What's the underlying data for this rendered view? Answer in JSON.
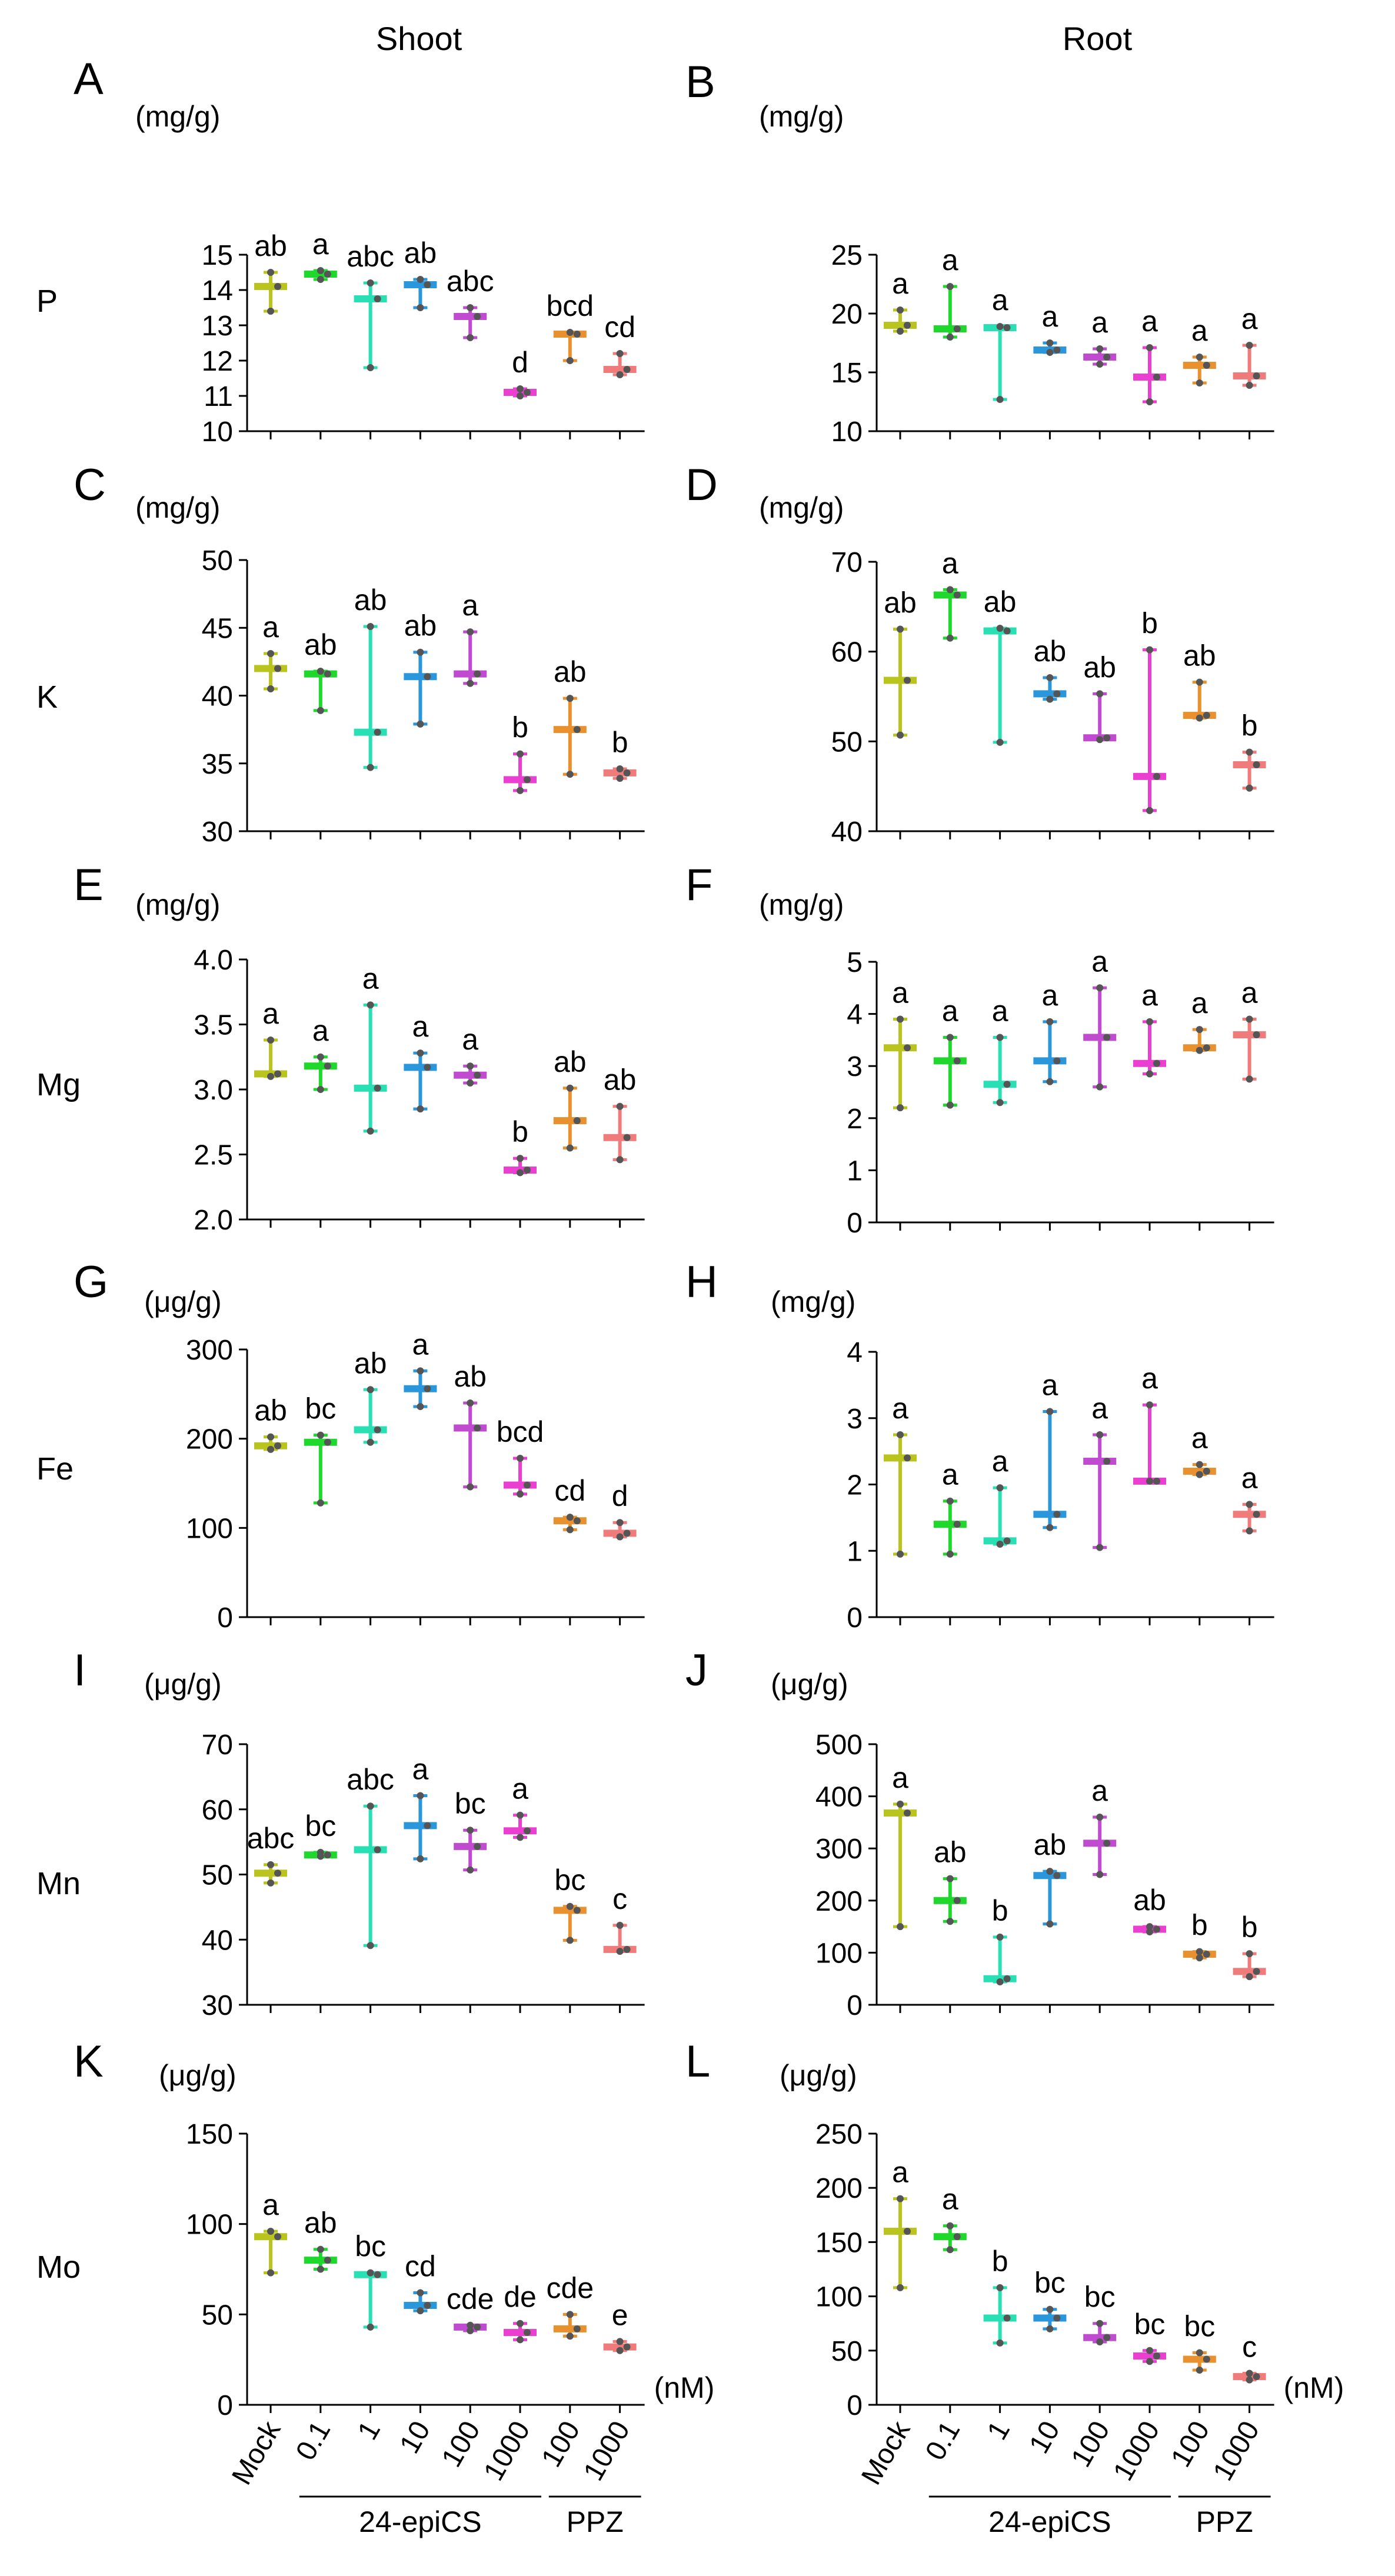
{
  "column_titles": [
    "Shoot",
    "Root"
  ],
  "row_labels": [
    "P",
    "K",
    "Mg",
    "Fe",
    "Mn",
    "Mo"
  ],
  "treatments": [
    "Mock",
    "0.1",
    "1",
    "10",
    "100",
    "1000",
    "100",
    "1000"
  ],
  "unit_nM": "(nM)",
  "group_labels": [
    "24-epiCS",
    "PPZ",
    "24-epiCS",
    "PPZ"
  ],
  "colors": [
    "#b9c41e",
    "#1fd82c",
    "#28e0b3",
    "#2a96dc",
    "#c04ad0",
    "#ea3fd0",
    "#e8912e",
    "#f07b7b"
  ],
  "chart_data": [
    {
      "panel": "A",
      "type": "box",
      "unit": "(mg/g)",
      "ylim": [
        10,
        15
      ],
      "yticks": [
        10,
        11,
        12,
        13,
        14,
        15
      ],
      "medians": [
        14.1,
        14.45,
        13.75,
        14.15,
        13.25,
        11.1,
        12.75,
        11.75
      ],
      "mins": [
        13.4,
        14.3,
        11.8,
        13.5,
        12.65,
        11.0,
        12.0,
        11.6
      ],
      "maxs": [
        14.5,
        14.55,
        14.2,
        14.3,
        13.5,
        11.2,
        12.8,
        12.2
      ],
      "letters": [
        "ab",
        "a",
        "abc",
        "ab",
        "abc",
        "d",
        "bcd",
        "cd"
      ]
    },
    {
      "panel": "B",
      "type": "box",
      "unit": "(mg/g)",
      "ylim": [
        10,
        25
      ],
      "yticks": [
        10,
        15,
        20,
        25
      ],
      "medians": [
        19.0,
        18.7,
        18.8,
        16.9,
        16.3,
        14.6,
        15.6,
        14.7
      ],
      "mins": [
        18.5,
        18.0,
        12.7,
        16.7,
        15.7,
        12.5,
        14.1,
        13.9
      ],
      "maxs": [
        20.3,
        22.3,
        18.9,
        17.5,
        17.0,
        17.1,
        16.3,
        17.3
      ],
      "letters": [
        "a",
        "a",
        "a",
        "a",
        "a",
        "a",
        "a",
        "a"
      ]
    },
    {
      "panel": "C",
      "type": "box",
      "unit": "(mg/g)",
      "ylim": [
        30,
        50
      ],
      "yticks": [
        30,
        35,
        40,
        45,
        50
      ],
      "medians": [
        42.0,
        41.6,
        37.3,
        41.4,
        41.6,
        33.8,
        37.5,
        34.3
      ],
      "mins": [
        40.5,
        38.9,
        34.7,
        37.9,
        40.9,
        33.0,
        34.2,
        33.9
      ],
      "maxs": [
        43.1,
        41.8,
        45.1,
        43.2,
        44.7,
        35.7,
        39.8,
        34.6
      ],
      "letters": [
        "a",
        "ab",
        "ab",
        "ab",
        "a",
        "b",
        "ab",
        "b"
      ]
    },
    {
      "panel": "D",
      "type": "box",
      "unit": "(mg/g)",
      "ylim": [
        40,
        70
      ],
      "yticks": [
        40,
        50,
        60,
        70
      ],
      "medians": [
        56.8,
        66.3,
        62.3,
        55.3,
        50.4,
        46.1,
        52.9,
        47.4
      ],
      "mins": [
        50.7,
        61.5,
        49.9,
        54.7,
        50.2,
        42.3,
        52.6,
        44.8
      ],
      "maxs": [
        62.5,
        66.9,
        62.6,
        57.1,
        55.3,
        60.2,
        56.6,
        48.8
      ],
      "letters": [
        "ab",
        "a",
        "ab",
        "ab",
        "ab",
        "b",
        "ab",
        "b"
      ]
    },
    {
      "panel": "E",
      "type": "box",
      "unit": "(mg/g)",
      "ylim": [
        2.0,
        4.0
      ],
      "yticks": [
        2.0,
        2.5,
        3.0,
        3.5,
        4.0
      ],
      "tick_labels": [
        "2.0",
        "2.5",
        "3.0",
        "3.5",
        "4.0"
      ],
      "medians": [
        3.12,
        3.18,
        3.01,
        3.17,
        3.11,
        2.38,
        2.76,
        2.63
      ],
      "mins": [
        3.1,
        3.0,
        2.68,
        2.85,
        3.05,
        2.36,
        2.55,
        2.46
      ],
      "maxs": [
        3.38,
        3.25,
        3.65,
        3.28,
        3.18,
        2.47,
        3.01,
        2.87
      ],
      "letters": [
        "a",
        "a",
        "a",
        "a",
        "a",
        "b",
        "ab",
        "ab"
      ]
    },
    {
      "panel": "F",
      "type": "box",
      "unit": "(mg/g)",
      "ylim": [
        0,
        5
      ],
      "yticks": [
        0,
        1,
        2,
        3,
        4,
        5
      ],
      "medians": [
        3.35,
        3.1,
        2.65,
        3.1,
        3.55,
        3.05,
        3.35,
        3.6
      ],
      "mins": [
        2.2,
        2.25,
        2.3,
        2.7,
        2.6,
        2.85,
        3.3,
        2.75
      ],
      "maxs": [
        3.9,
        3.55,
        3.55,
        3.85,
        4.5,
        3.85,
        3.7,
        3.9
      ],
      "letters": [
        "a",
        "a",
        "a",
        "a",
        "a",
        "a",
        "a",
        "a"
      ]
    },
    {
      "panel": "G",
      "type": "box",
      "unit": "(μg/g)",
      "ylim": [
        0,
        300
      ],
      "yticks": [
        0,
        100,
        200,
        300
      ],
      "medians": [
        192,
        196,
        210,
        256,
        212,
        148,
        108,
        94
      ],
      "mins": [
        188,
        128,
        196,
        236,
        146,
        138,
        98,
        90
      ],
      "maxs": [
        202,
        204,
        255,
        276,
        240,
        178,
        112,
        106
      ],
      "letters": [
        "ab",
        "bc",
        "ab",
        "a",
        "ab",
        "bcd",
        "cd",
        "d"
      ]
    },
    {
      "panel": "H",
      "type": "box",
      "unit": "(mg/g)",
      "ylim": [
        0,
        4
      ],
      "yticks": [
        0,
        1,
        2,
        3,
        4
      ],
      "medians": [
        2.4,
        1.4,
        1.15,
        1.55,
        2.35,
        2.05,
        2.2,
        1.55
      ],
      "mins": [
        0.95,
        0.95,
        1.1,
        1.35,
        1.05,
        2.05,
        2.15,
        1.3
      ],
      "maxs": [
        2.75,
        1.75,
        1.95,
        3.1,
        2.75,
        3.2,
        2.3,
        1.7
      ],
      "letters": [
        "a",
        "a",
        "a",
        "a",
        "a",
        "a",
        "a",
        "a"
      ]
    },
    {
      "panel": "I",
      "type": "box",
      "unit": "(μg/g)",
      "ylim": [
        30,
        70
      ],
      "yticks": [
        30,
        40,
        50,
        60,
        70
      ],
      "medians": [
        50.2,
        53.0,
        53.8,
        57.5,
        54.3,
        56.7,
        44.5,
        38.5
      ],
      "mins": [
        48.7,
        52.8,
        39.1,
        52.4,
        50.7,
        55.7,
        39.9,
        38.2
      ],
      "maxs": [
        51.5,
        53.4,
        60.5,
        62.1,
        56.8,
        59.1,
        45.1,
        42.2
      ],
      "letters": [
        "abc",
        "bc",
        "abc",
        "a",
        "bc",
        "a",
        "bc",
        "c"
      ]
    },
    {
      "panel": "J",
      "type": "box",
      "unit": "(μg/g)",
      "ylim": [
        0,
        500
      ],
      "yticks": [
        0,
        100,
        200,
        300,
        400,
        500
      ],
      "medians": [
        368,
        200,
        50,
        248,
        310,
        145,
        97,
        64
      ],
      "mins": [
        150,
        160,
        44,
        155,
        250,
        140,
        90,
        54
      ],
      "maxs": [
        385,
        242,
        130,
        256,
        360,
        150,
        102,
        98
      ],
      "letters": [
        "a",
        "ab",
        "b",
        "ab",
        "a",
        "ab",
        "b",
        "b"
      ]
    },
    {
      "panel": "K",
      "type": "box",
      "unit": "(μg/g)",
      "ylim": [
        0,
        150
      ],
      "yticks": [
        0,
        50,
        100,
        150
      ],
      "medians": [
        93,
        80,
        72,
        55,
        43,
        40,
        42,
        32
      ],
      "mins": [
        73,
        75,
        43,
        52,
        41,
        36,
        38,
        30
      ],
      "maxs": [
        96,
        86,
        73,
        62,
        44,
        45,
        50,
        35
      ],
      "letters": [
        "a",
        "ab",
        "bc",
        "cd",
        "cde",
        "de",
        "cde",
        "e"
      ]
    },
    {
      "panel": "L",
      "type": "box",
      "unit": "(μg/g)",
      "ylim": [
        0,
        250
      ],
      "yticks": [
        0,
        50,
        100,
        150,
        200,
        250
      ],
      "medians": [
        160,
        155,
        80,
        80,
        62,
        45,
        42,
        26
      ],
      "mins": [
        108,
        143,
        57,
        70,
        58,
        40,
        32,
        23
      ],
      "maxs": [
        190,
        165,
        108,
        88,
        75,
        50,
        48,
        29
      ],
      "letters": [
        "a",
        "a",
        "b",
        "bc",
        "bc",
        "bc",
        "bc",
        "c"
      ]
    }
  ]
}
